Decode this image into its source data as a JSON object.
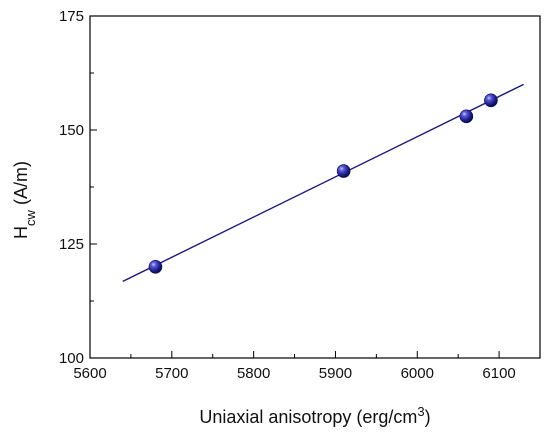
{
  "chart_data": {
    "type": "scatter",
    "xlabel": "Uniaxial anisotropy (erg/cm",
    "xlabel_sup": "3",
    "xlabel_suffix": ")",
    "ylabel": "H",
    "ylabel_sub": "cw",
    "ylabel_suffix": " (A/m)",
    "xlim": [
      5600,
      6150
    ],
    "ylim": [
      100,
      175
    ],
    "xticks": [
      5600,
      5700,
      5800,
      5900,
      6000,
      6100
    ],
    "yticks": [
      100,
      125,
      150,
      175
    ],
    "grid": false,
    "legend": "none",
    "series": [
      {
        "kind": "points",
        "x": [
          5680,
          5910,
          6060,
          6090
        ],
        "y": [
          120.0,
          141.0,
          153.0,
          156.5
        ],
        "color": "#1f1f8f"
      },
      {
        "kind": "fit-line",
        "x": [
          5640,
          6130
        ],
        "y": [
          116.8,
          160.0
        ],
        "color": "#1a1a80"
      }
    ]
  }
}
